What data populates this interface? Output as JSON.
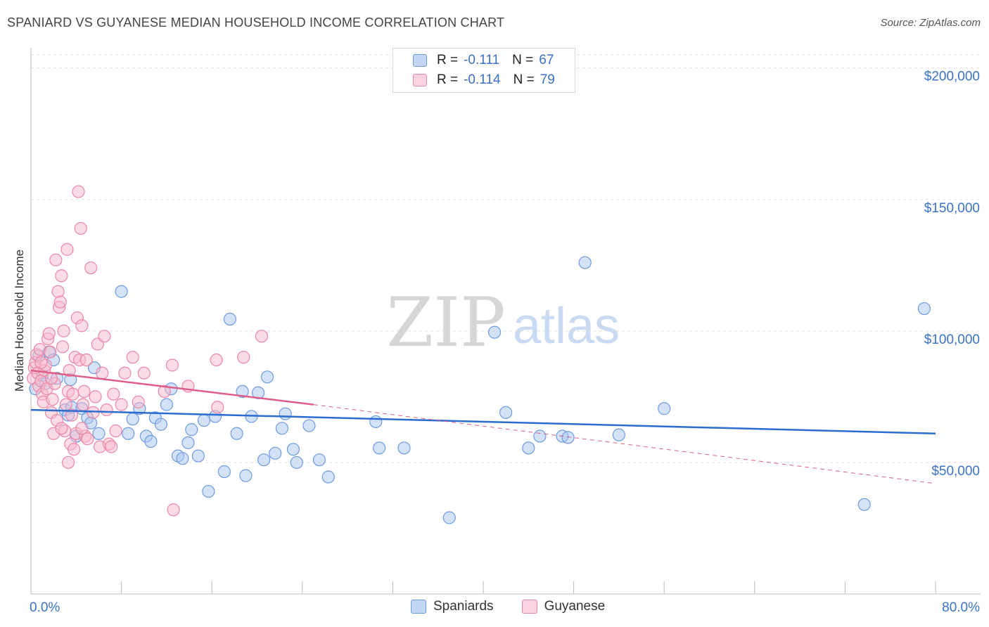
{
  "header": {
    "title": "SPANIARD VS GUYANESE MEDIAN HOUSEHOLD INCOME CORRELATION CHART",
    "source": "Source: ZipAtlas.com"
  },
  "legend": {
    "rows": [
      {
        "r_label": "R =",
        "r_value": "-0.111",
        "n_label": "N =",
        "n_value": "67"
      },
      {
        "r_label": "R =",
        "r_value": "-0.114",
        "n_label": "N =",
        "n_value": "79"
      }
    ]
  },
  "bottom_legend": {
    "items": [
      "Spaniards",
      "Guyanese"
    ]
  },
  "colors": {
    "blue_fill": "#a9c6f0",
    "blue_stroke": "#6d9be0",
    "blue_line": "#2a6ccf",
    "pink_fill": "#f7b9cb",
    "pink_stroke": "#ea86a6",
    "pink_line": "#e05d8a",
    "axis_text": "#3a72c8",
    "grid": "#dddddd"
  },
  "chart_data": {
    "type": "scatter",
    "title": "SPANIARD VS GUYANESE MEDIAN HOUSEHOLD INCOME CORRELATION CHART",
    "xlabel": "",
    "ylabel": "Median Household Income",
    "xlim": [
      0,
      80
    ],
    "ylim": [
      0,
      205000
    ],
    "x_tick_labels": [
      "0.0%",
      "80.0%"
    ],
    "y_ticks": [
      50000,
      100000,
      150000,
      200000
    ],
    "y_tick_labels": [
      "$50,000",
      "$100,000",
      "$150,000",
      "$200,000"
    ],
    "grid": true,
    "watermark": {
      "zip": "ZIP",
      "atlas": "atlas"
    },
    "series": [
      {
        "name": "Spaniards",
        "r": -0.111,
        "n": 67,
        "trend": {
          "x": [
            0,
            80
          ],
          "y": [
            70000,
            61000
          ]
        },
        "points": [
          [
            0.4,
            78000
          ],
          [
            0.7,
            90500
          ],
          [
            1.0,
            83000
          ],
          [
            1.3,
            80000
          ],
          [
            1.6,
            92000
          ],
          [
            2.0,
            89000
          ],
          [
            2.3,
            82000
          ],
          [
            3.0,
            70000
          ],
          [
            3.3,
            68000
          ],
          [
            3.6,
            71000
          ],
          [
            4.0,
            60000
          ],
          [
            4.5,
            70500
          ],
          [
            5.0,
            67000
          ],
          [
            5.3,
            65000
          ],
          [
            5.6,
            86000
          ],
          [
            6.0,
            61000
          ],
          [
            8.0,
            115000
          ],
          [
            8.6,
            61000
          ],
          [
            9.0,
            66500
          ],
          [
            9.6,
            70500
          ],
          [
            10.2,
            60000
          ],
          [
            10.6,
            58000
          ],
          [
            11.0,
            67000
          ],
          [
            11.5,
            64500
          ],
          [
            12.0,
            72000
          ],
          [
            12.4,
            78000
          ],
          [
            13.0,
            52500
          ],
          [
            13.4,
            51500
          ],
          [
            13.9,
            57500
          ],
          [
            14.2,
            62500
          ],
          [
            14.8,
            52500
          ],
          [
            15.3,
            66000
          ],
          [
            15.7,
            39000
          ],
          [
            16.3,
            67500
          ],
          [
            17.1,
            46500
          ],
          [
            17.6,
            104500
          ],
          [
            18.2,
            61000
          ],
          [
            18.7,
            77000
          ],
          [
            19.0,
            45000
          ],
          [
            19.5,
            67500
          ],
          [
            20.1,
            76500
          ],
          [
            20.6,
            51000
          ],
          [
            20.9,
            82500
          ],
          [
            21.6,
            53500
          ],
          [
            22.2,
            63000
          ],
          [
            22.5,
            68500
          ],
          [
            23.2,
            55000
          ],
          [
            23.5,
            50000
          ],
          [
            24.6,
            64000
          ],
          [
            25.5,
            51000
          ],
          [
            26.3,
            44500
          ],
          [
            30.5,
            65500
          ],
          [
            30.8,
            55500
          ],
          [
            33.0,
            55500
          ],
          [
            37.0,
            29000
          ],
          [
            41.0,
            99500
          ],
          [
            42.0,
            69000
          ],
          [
            44.0,
            55500
          ],
          [
            45.0,
            60000
          ],
          [
            47.0,
            60000
          ],
          [
            47.5,
            59500
          ],
          [
            49.0,
            126000
          ],
          [
            52.0,
            60500
          ],
          [
            56.0,
            70500
          ],
          [
            73.7,
            34000
          ],
          [
            79.0,
            108500
          ],
          [
            3.5,
            81500
          ]
        ]
      },
      {
        "name": "Guyanese",
        "r": -0.114,
        "n": 79,
        "trend": {
          "x": [
            0,
            25
          ],
          "y": [
            85000,
            72000
          ]
        },
        "trend_dashed": {
          "x": [
            25,
            80
          ],
          "y": [
            72000,
            42000
          ]
        },
        "points": [
          [
            0.2,
            82000
          ],
          [
            0.3,
            86000
          ],
          [
            0.4,
            88000
          ],
          [
            0.5,
            91000
          ],
          [
            0.6,
            84000
          ],
          [
            0.7,
            79000
          ],
          [
            0.8,
            93000
          ],
          [
            0.9,
            81000
          ],
          [
            1.0,
            76000
          ],
          [
            1.1,
            73000
          ],
          [
            1.2,
            85000
          ],
          [
            1.3,
            87000
          ],
          [
            1.4,
            78000
          ],
          [
            1.5,
            97000
          ],
          [
            1.6,
            99000
          ],
          [
            1.7,
            92000
          ],
          [
            1.8,
            69000
          ],
          [
            1.9,
            74000
          ],
          [
            2.0,
            61000
          ],
          [
            2.1,
            80000
          ],
          [
            2.2,
            127000
          ],
          [
            2.3,
            66000
          ],
          [
            2.4,
            115000
          ],
          [
            2.5,
            109000
          ],
          [
            2.6,
            111000
          ],
          [
            2.7,
            121000
          ],
          [
            2.8,
            94000
          ],
          [
            2.9,
            100000
          ],
          [
            3.0,
            62000
          ],
          [
            3.1,
            72000
          ],
          [
            3.2,
            131000
          ],
          [
            3.3,
            77000
          ],
          [
            3.4,
            85000
          ],
          [
            3.5,
            57000
          ],
          [
            3.6,
            68000
          ],
          [
            3.7,
            76000
          ],
          [
            3.8,
            55000
          ],
          [
            3.9,
            90000
          ],
          [
            4.0,
            61000
          ],
          [
            4.1,
            105000
          ],
          [
            4.2,
            153000
          ],
          [
            4.3,
            89000
          ],
          [
            4.4,
            139000
          ],
          [
            4.5,
            102000
          ],
          [
            4.6,
            72000
          ],
          [
            4.7,
            77000
          ],
          [
            4.8,
            60000
          ],
          [
            4.9,
            89000
          ],
          [
            5.0,
            59000
          ],
          [
            5.3,
            124000
          ],
          [
            5.5,
            69000
          ],
          [
            5.7,
            75000
          ],
          [
            5.9,
            95000
          ],
          [
            6.1,
            56000
          ],
          [
            6.3,
            84000
          ],
          [
            6.5,
            98000
          ],
          [
            6.7,
            70000
          ],
          [
            6.9,
            57000
          ],
          [
            7.1,
            56000
          ],
          [
            7.3,
            76000
          ],
          [
            7.5,
            62000
          ],
          [
            8.0,
            72000
          ],
          [
            8.3,
            84000
          ],
          [
            9.0,
            90000
          ],
          [
            9.5,
            73000
          ],
          [
            10.0,
            84000
          ],
          [
            11.8,
            77000
          ],
          [
            12.5,
            87000
          ],
          [
            12.6,
            32000
          ],
          [
            13.9,
            79000
          ],
          [
            16.4,
            89000
          ],
          [
            16.5,
            71000
          ],
          [
            18.8,
            90000
          ],
          [
            20.4,
            98000
          ],
          [
            0.9,
            88000
          ],
          [
            1.8,
            82000
          ],
          [
            2.7,
            63000
          ],
          [
            3.3,
            50000
          ],
          [
            4.5,
            63000
          ]
        ]
      }
    ]
  },
  "axis": {
    "x_min_label": "0.0%",
    "x_max_label": "80.0%"
  }
}
